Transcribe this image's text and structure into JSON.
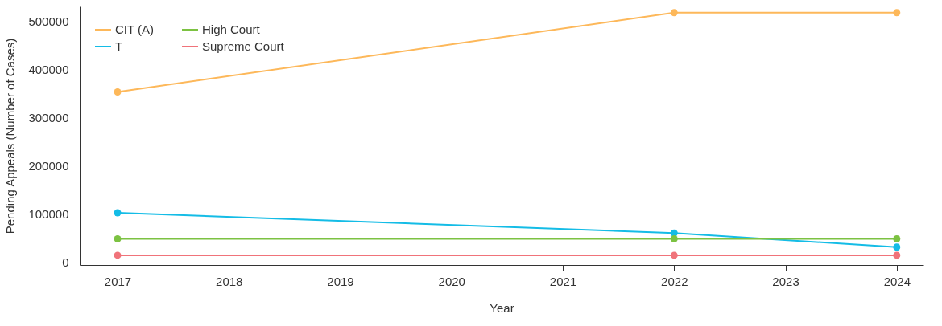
{
  "chart_data": {
    "type": "line",
    "xlabel": "Year",
    "ylabel": "Pending Appeals (Number of Cases)",
    "x": [
      2017,
      2022,
      2024
    ],
    "series": [
      {
        "name": "CIT (A)",
        "color": "#fdb85a",
        "values": [
          353000,
          517000,
          517000
        ]
      },
      {
        "name": "T",
        "color": "#14bce6",
        "values": [
          103000,
          61000,
          32000
        ]
      },
      {
        "name": "High Court",
        "color": "#7cc242",
        "values": [
          49000,
          49000,
          49000
        ]
      },
      {
        "name": "Supreme Court",
        "color": "#f0737a",
        "values": [
          15000,
          15000,
          15000
        ]
      }
    ],
    "xlim": [
      2016.66,
      2024.24
    ],
    "xticks": [
      2017,
      2018,
      2019,
      2020,
      2021,
      2022,
      2023,
      2024
    ],
    "ylim": [
      -5000,
      530000
    ],
    "yticks": [
      0,
      100000,
      200000,
      300000,
      400000,
      500000
    ],
    "grid": false,
    "legend": "top left",
    "marker": "circle",
    "line_style": "solid"
  }
}
